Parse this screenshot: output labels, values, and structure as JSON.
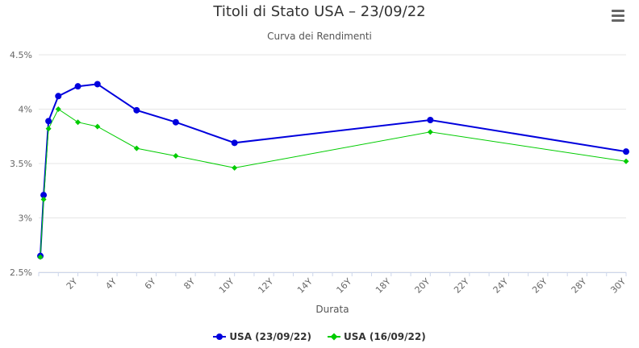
{
  "title": "Titoli di Stato USA – 23/09/22",
  "subtitle": "Curva dei Rendimenti",
  "chart_data": {
    "type": "line",
    "title": "Titoli di Stato USA – 23/09/22",
    "subtitle": "Curva dei Rendimenti",
    "xlabel": "Durata",
    "ylabel": "",
    "xlim": [
      0,
      30
    ],
    "ylim": [
      2.5,
      4.5
    ],
    "x_ticks": [
      {
        "value": 2,
        "label": "2Y"
      },
      {
        "value": 4,
        "label": "4Y"
      },
      {
        "value": 6,
        "label": "6Y"
      },
      {
        "value": 8,
        "label": "8Y"
      },
      {
        "value": 10,
        "label": "10Y"
      },
      {
        "value": 12,
        "label": "12Y"
      },
      {
        "value": 14,
        "label": "14Y"
      },
      {
        "value": 16,
        "label": "16Y"
      },
      {
        "value": 18,
        "label": "18Y"
      },
      {
        "value": 20,
        "label": "20Y"
      },
      {
        "value": 22,
        "label": "22Y"
      },
      {
        "value": 24,
        "label": "24Y"
      },
      {
        "value": 26,
        "label": "26Y"
      },
      {
        "value": 28,
        "label": "28Y"
      },
      {
        "value": 30,
        "label": "30Y"
      }
    ],
    "y_ticks": [
      {
        "value": 2.5,
        "label": "2.5%"
      },
      {
        "value": 3,
        "label": "3%"
      },
      {
        "value": 3.5,
        "label": "3.5%"
      },
      {
        "value": 4,
        "label": "4%"
      },
      {
        "value": 4.5,
        "label": "4.5%"
      }
    ],
    "grid": "horizontal",
    "legend_position": "bottom-center",
    "series": [
      {
        "name": "USA (23/09/22)",
        "color": "#0000dd",
        "marker": "circle",
        "points": [
          [
            0.083,
            2.65
          ],
          [
            0.25,
            3.21
          ],
          [
            0.5,
            3.89
          ],
          [
            1,
            4.12
          ],
          [
            2,
            4.21
          ],
          [
            3,
            4.23
          ],
          [
            5,
            3.99
          ],
          [
            7,
            3.88
          ],
          [
            10,
            3.69
          ],
          [
            20,
            3.9
          ],
          [
            30,
            3.61
          ]
        ]
      },
      {
        "name": "USA (16/09/22)",
        "color": "#00cc00",
        "marker": "diamond",
        "points": [
          [
            0.083,
            2.64
          ],
          [
            0.25,
            3.17
          ],
          [
            0.5,
            3.82
          ],
          [
            1,
            4.0
          ],
          [
            2,
            3.88
          ],
          [
            3,
            3.84
          ],
          [
            5,
            3.64
          ],
          [
            7,
            3.57
          ],
          [
            10,
            3.46
          ],
          [
            20,
            3.79
          ],
          [
            30,
            3.52
          ]
        ]
      }
    ]
  }
}
